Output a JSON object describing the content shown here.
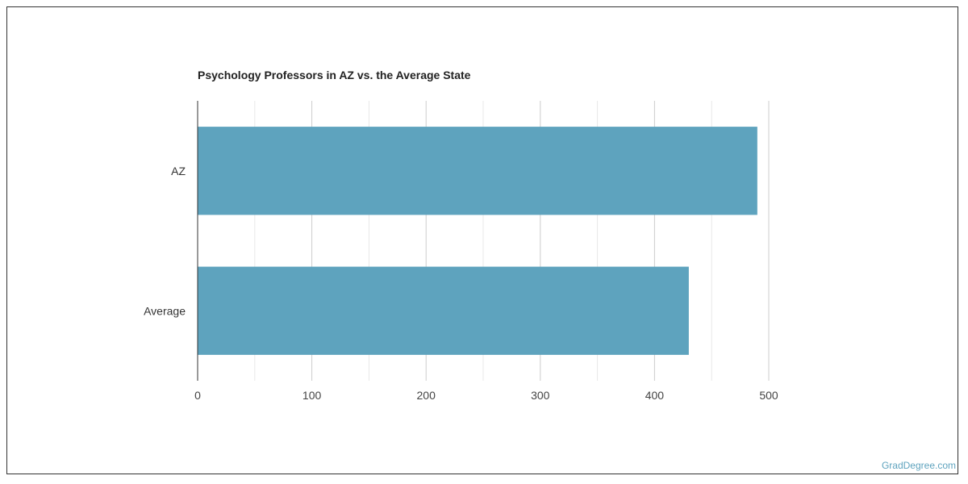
{
  "chart_data": {
    "type": "bar",
    "orientation": "horizontal",
    "title": "Psychology Professors in AZ vs. the Average State",
    "categories": [
      "AZ",
      "Average"
    ],
    "values": [
      490,
      430
    ],
    "xlim": [
      0,
      500
    ],
    "xticks": [
      0,
      100,
      200,
      300,
      400,
      500
    ],
    "xlabel": "",
    "ylabel": "",
    "grid": true,
    "legend": "none",
    "bar_color": "#5ea3be"
  },
  "watermark": "GradDegree.com"
}
